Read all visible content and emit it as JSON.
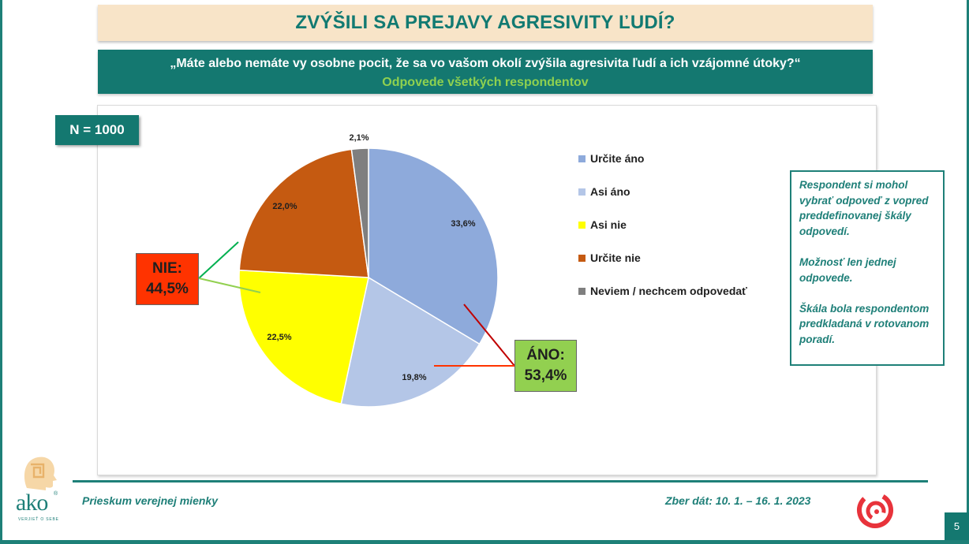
{
  "header": {
    "title": "ZVÝŠILI SA PREJAVY AGRESIVITY ĽUDÍ?",
    "question": "„Máte alebo nemáte vy osobne pocit, že sa vo vašom okolí zvýšila agresivita ľudí a ich vzájomné útoky?“",
    "subtitle": "Odpovede všetkých respondentov"
  },
  "sample": "N = 1000",
  "chart_data": {
    "type": "pie",
    "title": "",
    "start_angle": 0,
    "direction": "clockwise",
    "legend_placement": "right",
    "slices": [
      {
        "label": "Určite áno",
        "value": 33.6,
        "display": "33,6%",
        "color": "#8eaadb"
      },
      {
        "label": "Asi áno",
        "value": 19.8,
        "display": "19,8%",
        "color": "#b4c6e7"
      },
      {
        "label": "Asi nie",
        "value": 22.5,
        "display": "22,5%",
        "color": "#ffff00"
      },
      {
        "label": "Určite nie",
        "value": 22.0,
        "display": "22,0%",
        "color": "#c55a11"
      },
      {
        "label": "Neviem / nechcem odpovedať",
        "value": 2.1,
        "display": "2,1%",
        "color": "#7f7f7f"
      }
    ],
    "groups": [
      {
        "label": "NIE:",
        "value": "44,5%",
        "color": "#ff3300",
        "line_color": "#00b050"
      },
      {
        "label": "ÁNO:",
        "value": "53,4%",
        "color": "#92d050",
        "line_color": "#c00000"
      }
    ]
  },
  "note": {
    "p1": "Respondent si mohol vybrať odpoveď z vopred preddefinovanej škály odpovedí.",
    "p2": "Možnosť len jednej odpovede.",
    "p3": "Škála bola respondentom predkladaná v rotovanom poradí."
  },
  "footer": {
    "left": "Prieskum verejnej mienky",
    "right": "Zber dát: 10. 1. – 16. 1. 2023",
    "page": "5",
    "logo_text": "ako",
    "logo_tagline": "VERJIEŤ O SEBE",
    "accent": "#1e8078"
  }
}
